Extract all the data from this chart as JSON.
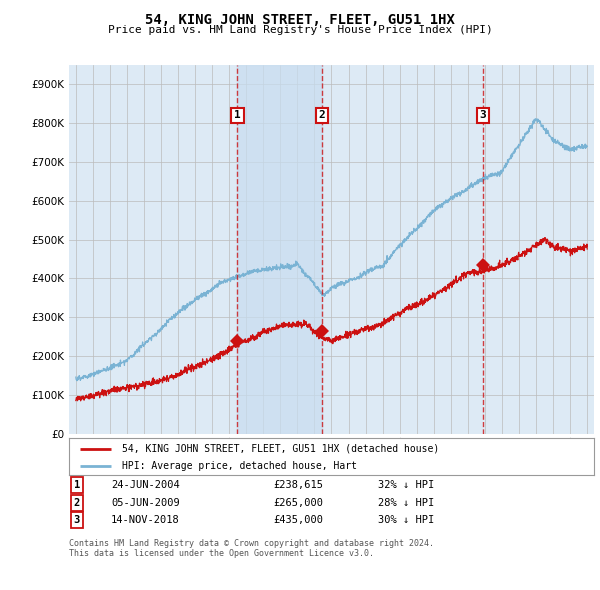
{
  "title": "54, KING JOHN STREET, FLEET, GU51 1HX",
  "subtitle": "Price paid vs. HM Land Registry's House Price Index (HPI)",
  "legend_line1": "54, KING JOHN STREET, FLEET, GU51 1HX (detached house)",
  "legend_line2": "HPI: Average price, detached house, Hart",
  "footer1": "Contains HM Land Registry data © Crown copyright and database right 2024.",
  "footer2": "This data is licensed under the Open Government Licence v3.0.",
  "transactions": [
    {
      "num": 1,
      "date": "24-JUN-2004",
      "price": "£238,615",
      "pct": "32%",
      "year_x": 2004.48
    },
    {
      "num": 2,
      "date": "05-JUN-2009",
      "price": "£265,000",
      "pct": "28%",
      "year_x": 2009.43
    },
    {
      "num": 3,
      "date": "14-NOV-2018",
      "price": "£435,000",
      "pct": "30%",
      "year_x": 2018.87
    }
  ],
  "hpi_color": "#7ab3d4",
  "price_color": "#cc1111",
  "annotation_box_color": "#cc1111",
  "shade_color": "#c8ddf0",
  "grid_color": "#bbbbbb",
  "background_color": "#ddeaf5",
  "ylim": [
    0,
    950000
  ],
  "yticks": [
    0,
    100000,
    200000,
    300000,
    400000,
    500000,
    600000,
    700000,
    800000,
    900000
  ],
  "xlim_start": 1994.6,
  "xlim_end": 2025.4,
  "xticks": [
    1995,
    1996,
    1997,
    1998,
    1999,
    2000,
    2001,
    2002,
    2003,
    2004,
    2005,
    2006,
    2007,
    2008,
    2009,
    2010,
    2011,
    2012,
    2013,
    2014,
    2015,
    2016,
    2017,
    2018,
    2019,
    2020,
    2021,
    2022,
    2023,
    2024,
    2025
  ]
}
